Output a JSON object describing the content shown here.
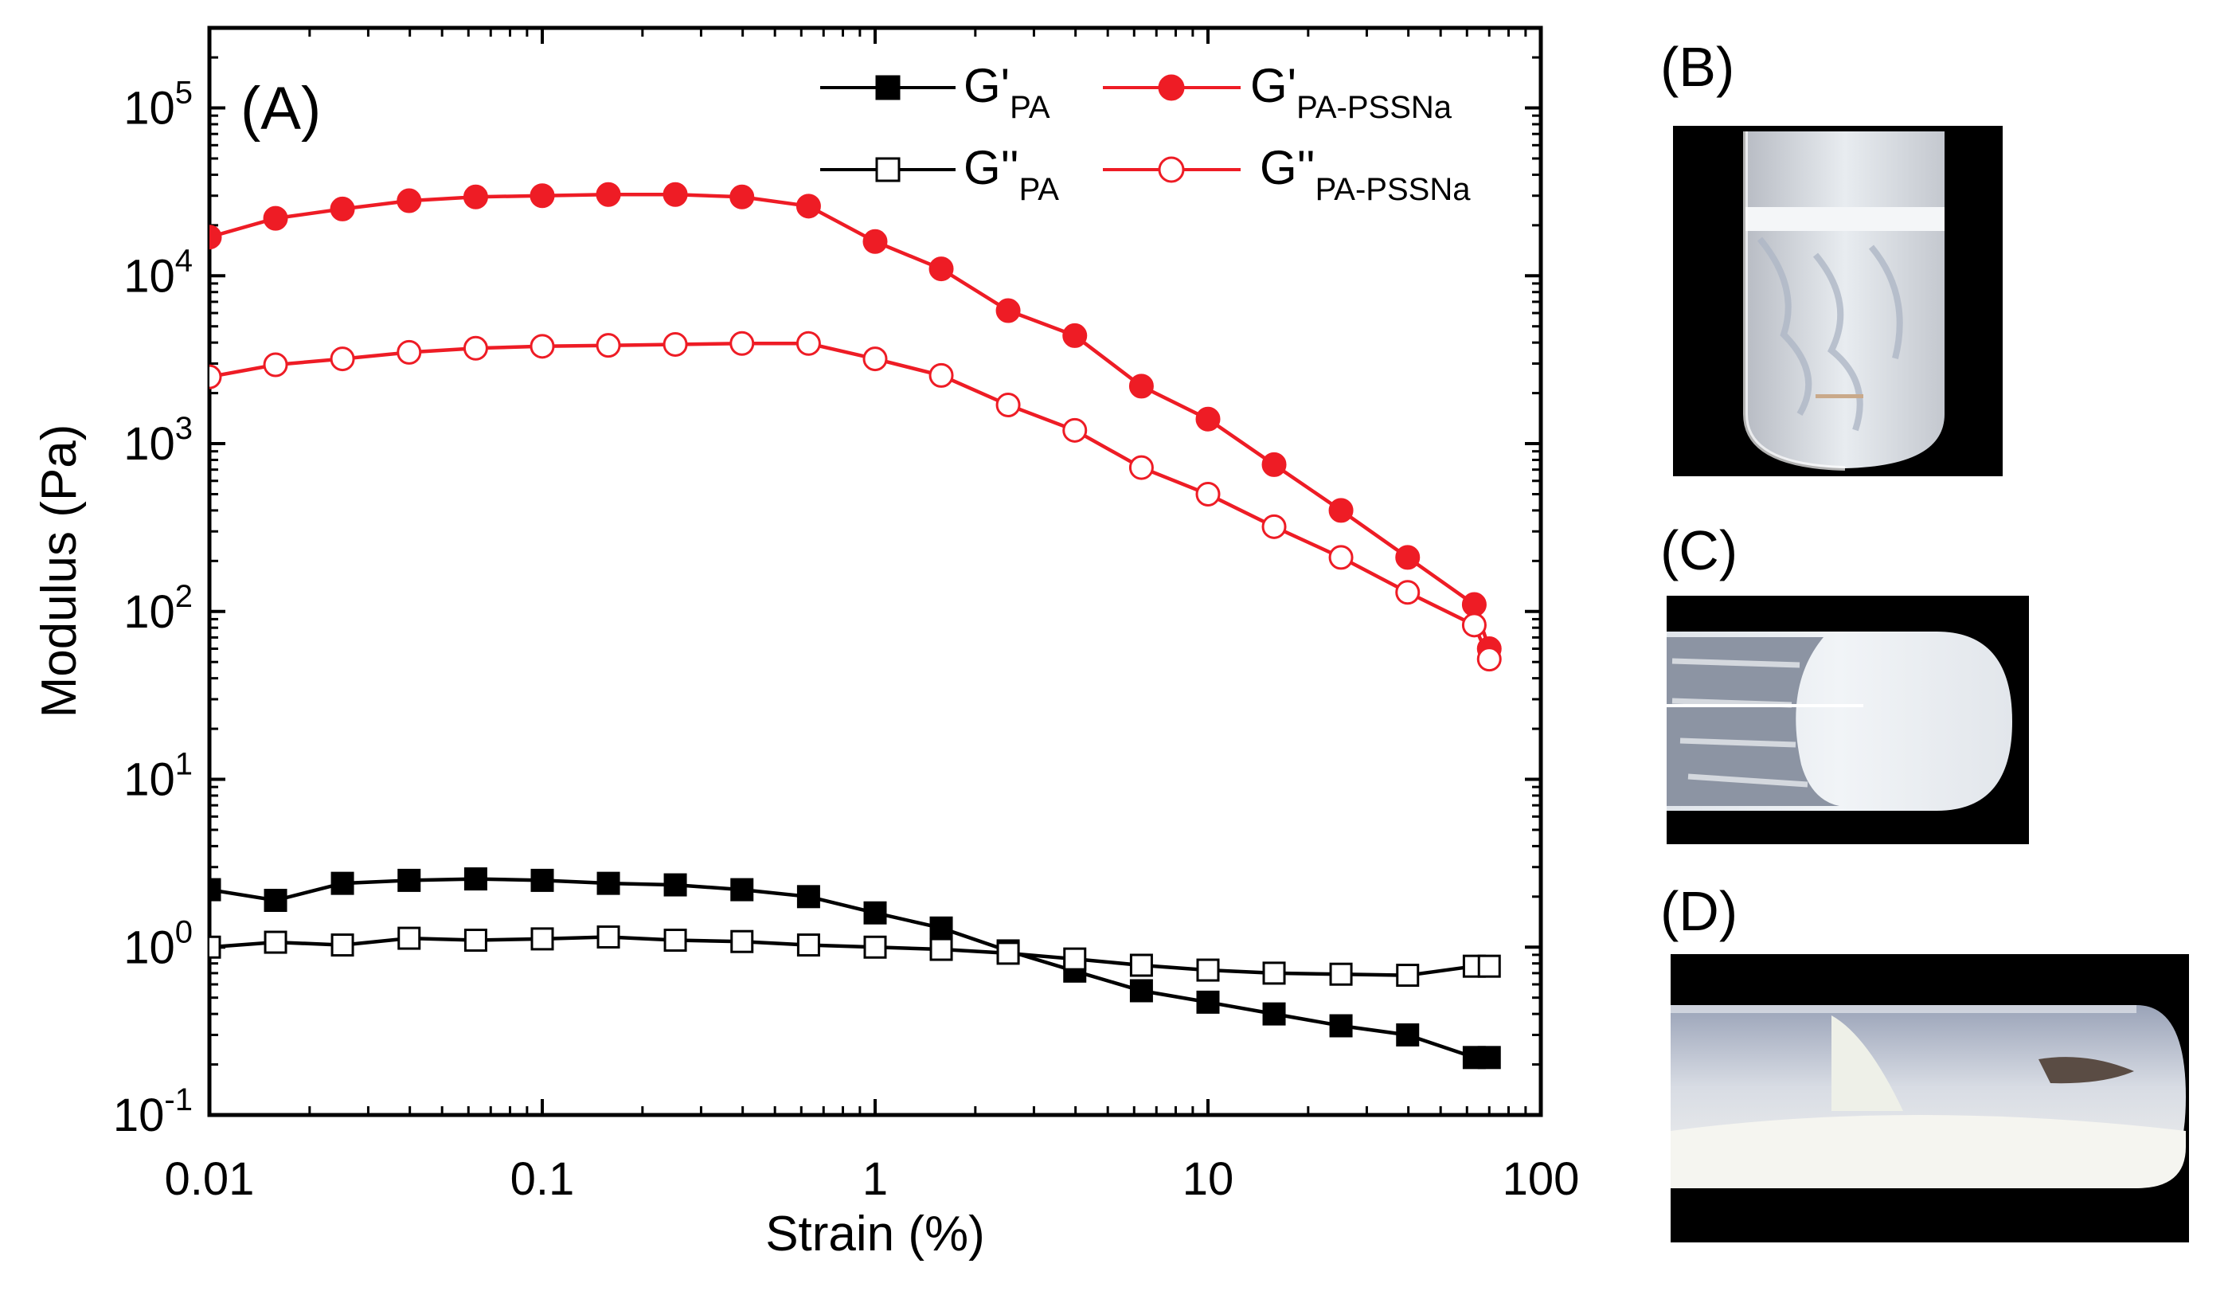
{
  "chart_data": {
    "type": "line",
    "panel_label": "(A)",
    "xlabel": "Strain (%)",
    "ylabel": "Modulus (Pa)",
    "xscale": "log",
    "yscale": "log",
    "xlim": [
      0.01,
      100
    ],
    "ylim": [
      0.1,
      300000
    ],
    "x_ticks": [
      {
        "value": 0.01,
        "label": "0.01"
      },
      {
        "value": 0.1,
        "label": "0.1"
      },
      {
        "value": 1,
        "label": "1"
      },
      {
        "value": 10,
        "label": "10"
      },
      {
        "value": 100,
        "label": "100"
      }
    ],
    "y_ticks": [
      {
        "value": 0.1,
        "base": "10",
        "exp": "-1"
      },
      {
        "value": 1,
        "base": "10",
        "exp": "0"
      },
      {
        "value": 10,
        "base": "10",
        "exp": "1"
      },
      {
        "value": 100,
        "base": "10",
        "exp": "2"
      },
      {
        "value": 1000,
        "base": "10",
        "exp": "3"
      },
      {
        "value": 10000,
        "base": "10",
        "exp": "4"
      },
      {
        "value": 100000,
        "base": "10",
        "exp": "5"
      }
    ],
    "legend_position": "top-right",
    "x": [
      0.01,
      0.0158,
      0.0251,
      0.0398,
      0.0631,
      0.1,
      0.158,
      0.251,
      0.398,
      0.631,
      1,
      1.58,
      2.51,
      3.98,
      6.31,
      10,
      15.8,
      25.1,
      39.8,
      63.1
    ],
    "series": [
      {
        "name": "G'PA",
        "legend_main": "G'",
        "legend_sub": "PA",
        "color": "#000000",
        "marker": "square",
        "filled": true,
        "values": [
          2.2,
          1.9,
          2.4,
          2.5,
          2.55,
          2.5,
          2.4,
          2.35,
          2.2,
          2.0,
          1.6,
          1.3,
          0.95,
          0.72,
          0.55,
          0.47,
          0.4,
          0.34,
          0.3,
          0.22
        ]
      },
      {
        "name": "G''PA",
        "legend_main": "G''",
        "legend_sub": "PA",
        "color": "#000000",
        "marker": "square",
        "filled": false,
        "values": [
          1.0,
          1.07,
          1.03,
          1.13,
          1.1,
          1.12,
          1.15,
          1.1,
          1.08,
          1.03,
          1.0,
          0.97,
          0.92,
          0.85,
          0.78,
          0.73,
          0.7,
          0.69,
          0.68,
          0.77
        ]
      },
      {
        "name": "G'PA-PSSNa",
        "legend_main": "G'",
        "legend_sub": "PA-PSSNa",
        "color": "#ee1c25",
        "marker": "circle",
        "filled": true,
        "values": [
          17000,
          22000,
          25000,
          28000,
          29500,
          30000,
          30500,
          30500,
          29500,
          26000,
          16000,
          11000,
          6200,
          4400,
          2200,
          1400,
          750,
          400,
          210,
          110
        ]
      },
      {
        "name": "G''PA-PSSNa",
        "legend_main": "G''",
        "legend_sub": "PA-PSSNa",
        "color": "#ee1c25",
        "marker": "circle",
        "filled": false,
        "values": [
          2500,
          2950,
          3200,
          3500,
          3700,
          3800,
          3850,
          3900,
          3950,
          3950,
          3200,
          2550,
          1700,
          1200,
          720,
          500,
          320,
          210,
          130,
          83
        ]
      }
    ],
    "series_end": {
      "x": 70,
      "values": [
        0.22,
        0.77,
        60,
        52
      ]
    }
  },
  "photos": [
    {
      "label": "(B)",
      "description-icon": "vial-upright-photo"
    },
    {
      "label": "(C)",
      "description-icon": "tube-horizontal-photo"
    },
    {
      "label": "(D)",
      "description-icon": "tube-tilted-photo"
    }
  ]
}
